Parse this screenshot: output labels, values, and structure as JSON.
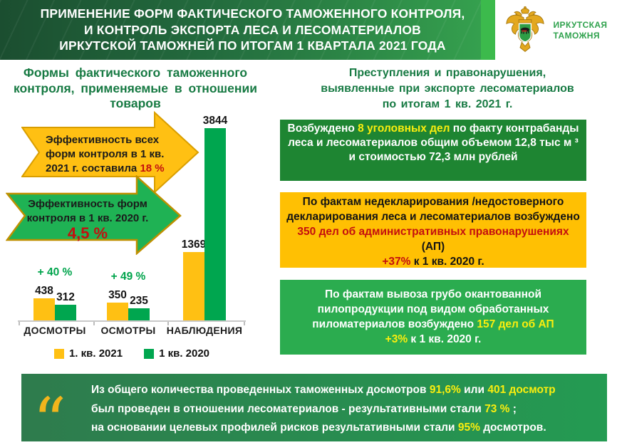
{
  "header": {
    "title_lines": [
      "ПРИМЕНЕНИЕ ФОРМ ФАКТИЧЕСКОГО ТАМОЖЕННОГО КОНТРОЛЯ,",
      "И  КОНТРОЛЬ ЭКСПОРТА ЛЕСА И ЛЕСОМАТЕРИАЛОВ",
      "ИРКУТСКОЙ ТАМОЖНЕЙ ПО ИТОГАМ 1 КВАРТАЛА 2021 ГОДА"
    ],
    "logo_lines": [
      "ИРКУТСКАЯ",
      "ТАМОЖНЯ"
    ]
  },
  "left_panel": {
    "chart_title_lines": [
      "Формы  фактического  таможенного",
      "контроля,  применяемые  в отношении",
      "товаров"
    ],
    "callouts": {
      "yellow": {
        "segments": [
          {
            "t": "Эффективность всех",
            "c": "dark"
          },
          {
            "br": true
          },
          {
            "t": "форм контроля в 1 кв.",
            "c": "dark"
          },
          {
            "br": true
          },
          {
            "t": "2021 г.  составила ",
            "c": "dark"
          },
          {
            "t": "18 %",
            "c": "red"
          }
        ]
      },
      "green": {
        "segments": [
          {
            "t": "Эффективность  форм",
            "c": "dark"
          },
          {
            "br": true
          },
          {
            "t": "контроля  в 1 кв.   2020 г.",
            "c": "dark"
          }
        ],
        "value": "4,5 %"
      }
    }
  },
  "chart_data": {
    "type": "bar",
    "title": "Формы фактического таможенного контроля, применяемые в отношении товаров",
    "categories": [
      "ДОСМОТРЫ",
      "ОСМОТРЫ",
      "НАБЛЮДЕНИЯ"
    ],
    "series": [
      {
        "name": "1. кв. 2021",
        "color": "#FFC013",
        "values": [
          438,
          350,
          1369
        ]
      },
      {
        "name": "1 кв. 2020",
        "color": "#00A64F",
        "values": [
          312,
          235,
          3844
        ]
      }
    ],
    "growth_labels": [
      "+ 40 %",
      "+ 49 %",
      null
    ],
    "ylim": [
      0,
      3844
    ],
    "grid": false,
    "legend_position": "bottom"
  },
  "right_panel": {
    "title_lines": [
      "Преступления  и правонарушения,",
      "выявленные   при экспорте лесоматериалов",
      "по итогам  1 кв. 2021 г."
    ],
    "boxes": [
      {
        "segments": [
          {
            "t": "Возбуждено ",
            "c": "white"
          },
          {
            "t": "8 уголовных дел",
            "c": "yellow"
          },
          {
            "t": "  по факту контрабанды леса и лесоматериалов  общим объемом  12,8 тыс м ³ и стоимостью 72,3 млн рублей",
            "c": "white"
          }
        ]
      },
      {
        "segments": [
          {
            "t": "По фактам недекларирования /недостоверного декларирования леса и лесоматериалов возбуждено ",
            "c": "black"
          },
          {
            "t": "350 дел об административных правонарушениях",
            "c": "red"
          },
          {
            "t": " (АП)",
            "c": "black"
          },
          {
            "br": true
          },
          {
            "t": "+37%",
            "c": "red"
          },
          {
            "t": " к 1 кв. 2020 г.",
            "c": "black"
          }
        ]
      },
      {
        "segments": [
          {
            "t": "По фактам  вывоза  грубо  окантованной пилопродукции  под видом  обработанных пиломатериалов  возбуждено ",
            "c": "white"
          },
          {
            "t": "157 дел об АП",
            "c": "yellow"
          },
          {
            "br": true
          },
          {
            "t": "+3%",
            "c": "yellow"
          },
          {
            "t": " к 1 кв. 2020 г.",
            "c": "white"
          }
        ]
      }
    ]
  },
  "footer_quote": {
    "icon": "“",
    "lines": [
      [
        {
          "t": "Из  общего  количества  проведенных  таможенных  досмотров  ",
          "c": "white"
        },
        {
          "t": "91,6%",
          "c": "yellow"
        },
        {
          "t": "  или  ",
          "c": "white"
        },
        {
          "t": "401  досмотр",
          "c": "yellow"
        }
      ],
      [
        {
          "t": "был проведен в отношении лесоматериалов - результативными стали ",
          "c": "white"
        },
        {
          "t": "73 %",
          "c": "yellow"
        },
        {
          "t": " ;",
          "c": "white"
        }
      ],
      [
        {
          "t": "на основании целевых профилей рисков результативными стали ",
          "c": "white"
        },
        {
          "t": "95%",
          "c": "yellow"
        },
        {
          "t": " досмотров.",
          "c": "white"
        }
      ]
    ]
  },
  "colors": {
    "header_dark_green": "#1B4E30",
    "header_light_green": "#35A04E",
    "accent_strip": "#3CBA4C",
    "title_green": "#177A43",
    "bar_2021_yellow": "#FFC013",
    "bar_2020_green": "#00A64F",
    "box_dark_green": "#1E8532",
    "box_yellow": "#FFC003",
    "box_green": "#2BAC4F",
    "quote_green": "#2E7B4D",
    "highlight_yellow": "#FAEE0E",
    "highlight_red": "#C40F0F",
    "gold": "#F2B51C"
  }
}
